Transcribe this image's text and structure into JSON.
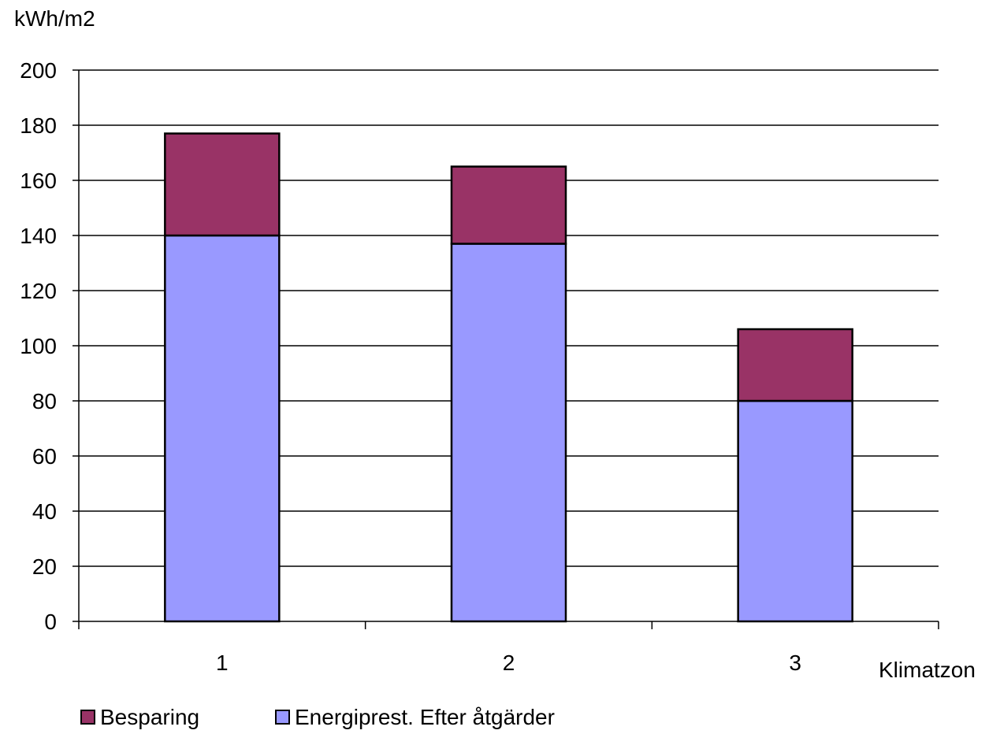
{
  "chart_data": {
    "type": "bar",
    "stacked": true,
    "categories": [
      "1",
      "2",
      "3"
    ],
    "series": [
      {
        "name": "Energiprest. Efter åtgärder",
        "values": [
          140,
          137,
          80
        ],
        "color": "#9999ff"
      },
      {
        "name": "Besparing",
        "values": [
          37,
          28,
          26
        ],
        "color": "#993366"
      }
    ],
    "ylabel": "kWh/m2",
    "xlabel": "Klimatzon",
    "ylim": [
      0,
      200
    ],
    "yticks": [
      0,
      20,
      40,
      60,
      80,
      100,
      120,
      140,
      160,
      180,
      200
    ],
    "grid": true,
    "legend_position": "bottom-left",
    "legend_order": [
      1,
      0
    ]
  }
}
